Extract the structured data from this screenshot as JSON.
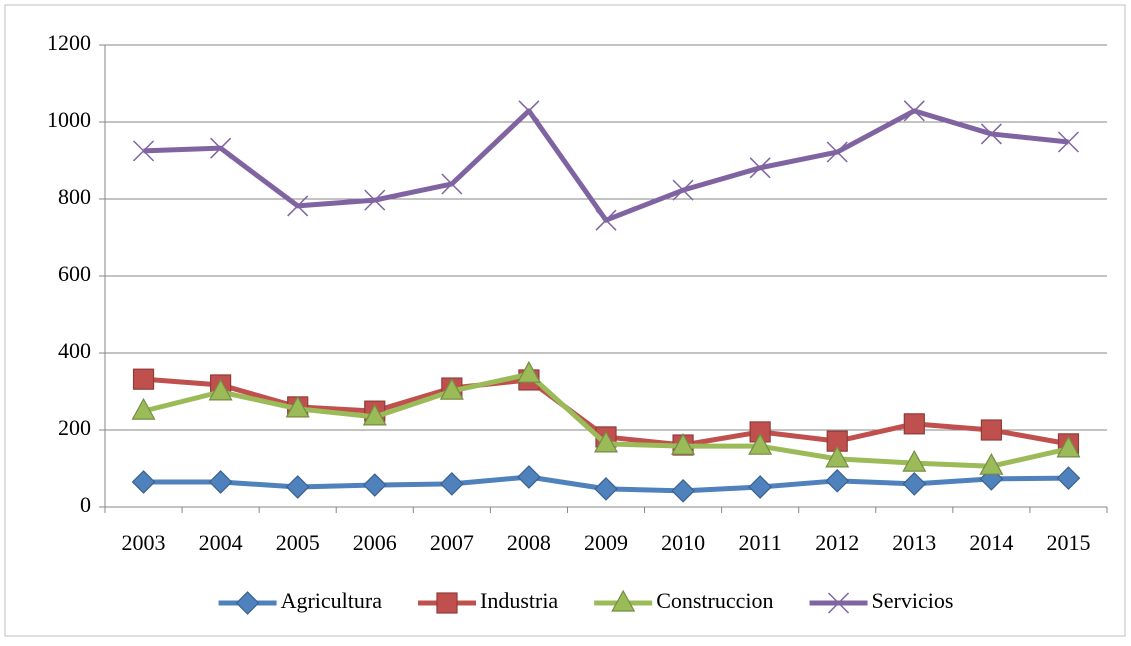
{
  "chart_data": {
    "type": "line",
    "categories": [
      "2003",
      "2004",
      "2005",
      "2006",
      "2007",
      "2008",
      "2009",
      "2010",
      "2011",
      "2012",
      "2013",
      "2014",
      "2015"
    ],
    "series": [
      {
        "name": "Agricultura",
        "color": "#4f81bd",
        "marker": "diamond",
        "values": [
          65,
          65,
          52,
          57,
          60,
          78,
          47,
          42,
          52,
          68,
          60,
          73,
          75
        ]
      },
      {
        "name": "Industria",
        "color": "#c0504d",
        "marker": "square",
        "values": [
          332,
          317,
          260,
          249,
          309,
          330,
          182,
          161,
          195,
          171,
          216,
          200,
          164
        ]
      },
      {
        "name": "Construccion",
        "color": "#9bbb59",
        "marker": "triangle",
        "values": [
          249,
          299,
          255,
          234,
          301,
          345,
          164,
          158,
          158,
          125,
          114,
          106,
          151
        ]
      },
      {
        "name": "Servicios",
        "color": "#8064a2",
        "marker": "x",
        "values": [
          925,
          932,
          782,
          797,
          839,
          1029,
          745,
          823,
          881,
          922,
          1029,
          969,
          948
        ]
      }
    ],
    "ylim": [
      0,
      1200
    ],
    "yticks": [
      0,
      200,
      400,
      600,
      800,
      1000,
      1200
    ],
    "grid": true,
    "legend": "bottom"
  }
}
